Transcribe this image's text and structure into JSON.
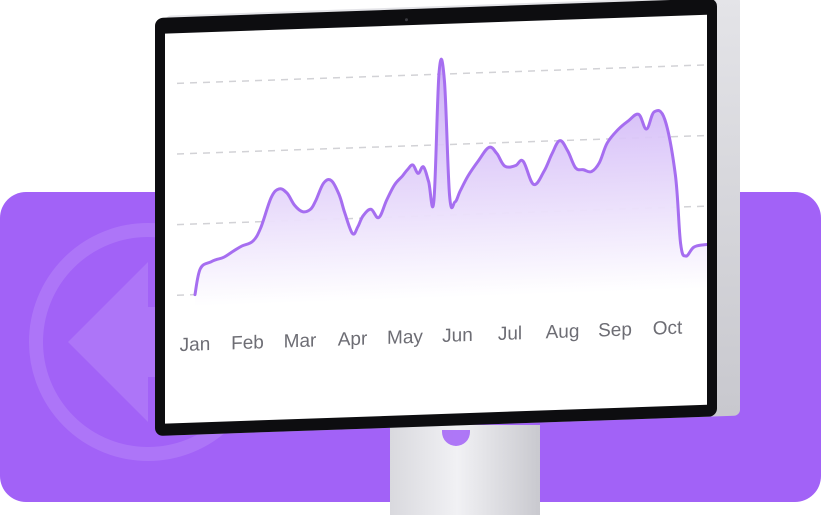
{
  "colors": {
    "panel": "#a262f7",
    "line": "#a66ef0",
    "area_top": "#c7a7f5",
    "area_bottom": "#ffffff",
    "grid": "#d2d2d6",
    "tick_text": "#6d6d74"
  },
  "icons": {
    "background": "arrow-left-icon"
  },
  "chart_data": {
    "type": "area",
    "x_labels": [
      "Jan",
      "Feb",
      "Mar",
      "Apr",
      "May",
      "Jun",
      "Jul",
      "Aug",
      "Sep",
      "Oct"
    ],
    "ylim": [
      0,
      100
    ],
    "grid": true,
    "gridline_values": [
      0,
      33,
      66,
      99
    ],
    "series": [
      {
        "x": [
          0.0,
          0.1,
          0.3,
          0.4,
          0.55,
          0.75,
          0.9,
          1.1,
          1.25,
          1.45,
          1.6,
          1.75,
          1.9,
          2.05,
          2.2,
          2.3,
          2.45,
          2.6,
          2.75,
          2.85,
          3.0,
          3.1,
          3.2,
          3.35,
          3.5,
          3.65,
          3.8,
          3.95,
          4.05,
          4.15,
          4.25,
          4.35,
          4.45,
          4.55,
          4.65,
          4.75,
          4.85,
          4.95,
          5.05,
          5.2,
          5.4,
          5.6,
          5.75,
          5.9,
          6.1,
          6.25,
          6.45,
          6.65,
          6.8,
          6.95,
          7.1,
          7.25,
          7.4,
          7.55,
          7.7,
          7.85,
          8.05,
          8.25,
          8.45,
          8.6,
          8.75,
          8.95,
          9.15,
          9.25,
          9.35,
          9.5,
          9.7,
          9.9
        ],
        "values": [
          0,
          12,
          15,
          16,
          17,
          20,
          22,
          24,
          30,
          44,
          48,
          46,
          40,
          37,
          38,
          42,
          50,
          51,
          44,
          36,
          26,
          29,
          34,
          37,
          33,
          41,
          48,
          52,
          55,
          57,
          53,
          56,
          49,
          40,
          100,
          96,
          42,
          39,
          44,
          51,
          58,
          64,
          61,
          55,
          55,
          57,
          46,
          52,
          60,
          66,
          61,
          53,
          52,
          51,
          55,
          64,
          70,
          74,
          77,
          70,
          78,
          74,
          48,
          16,
          10,
          14,
          15,
          15
        ]
      }
    ]
  }
}
